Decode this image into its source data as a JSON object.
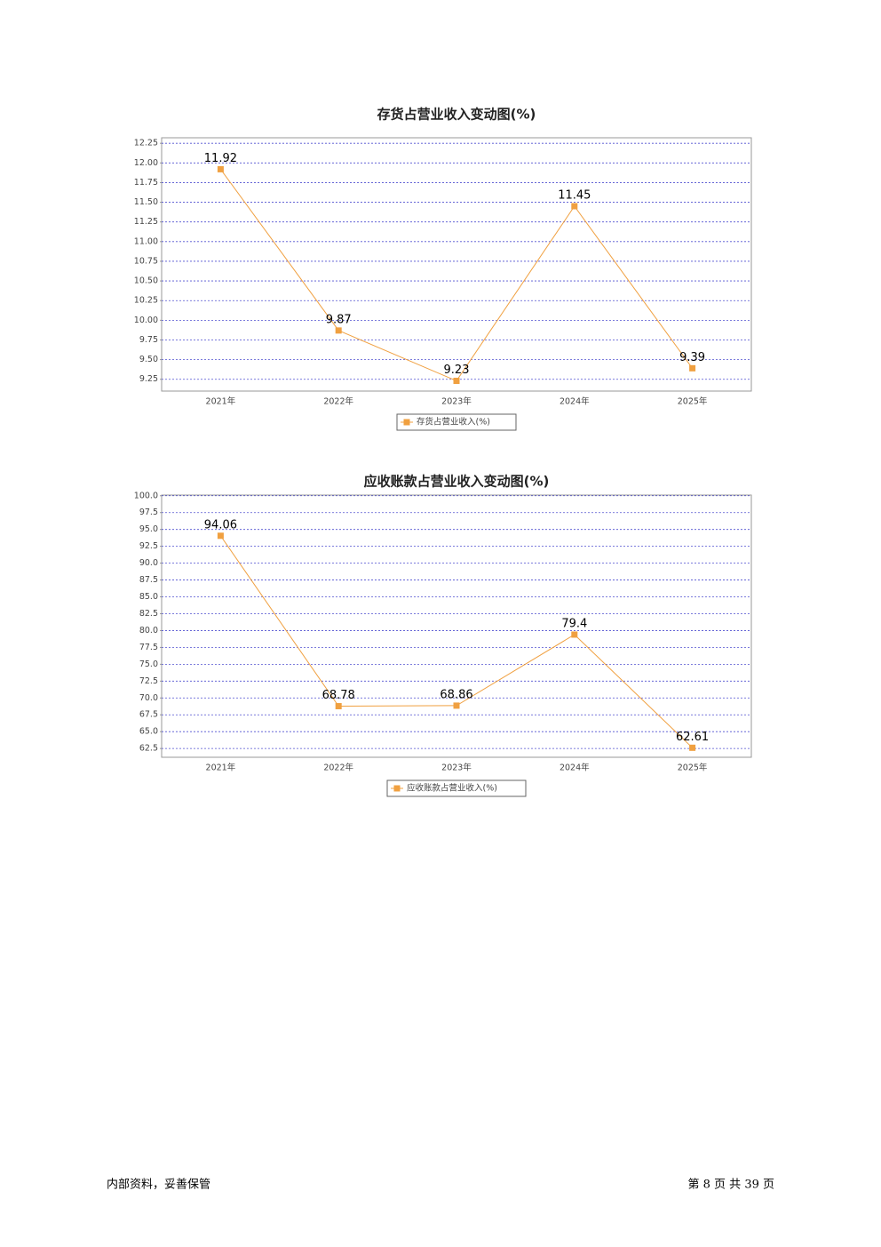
{
  "chart_data": [
    {
      "type": "line",
      "title": "存货占营业收入变动图(%)",
      "categories": [
        "2021年",
        "2022年",
        "2023年",
        "2024年",
        "2025年"
      ],
      "series": [
        {
          "name": "存货占营业收入(%)",
          "color": "#f0a040",
          "values": [
            11.92,
            9.87,
            9.23,
            11.45,
            9.39
          ]
        }
      ],
      "ylim": [
        9.1,
        12.32
      ],
      "yticks": [
        9.25,
        {
          "value": 9.5,
          "label": "9.50"
        },
        9.75,
        {
          "value": 10,
          "label": "10.00"
        },
        10.25,
        {
          "value": 10.5,
          "label": "10.50"
        },
        10.75,
        {
          "value": 11,
          "label": "11.00"
        },
        11.25,
        {
          "value": 11.5,
          "label": "11.50"
        },
        11.75,
        {
          "value": 12,
          "label": "12.00"
        },
        12.25
      ],
      "grid": true,
      "legend": "bottom"
    },
    {
      "type": "line",
      "title": "应收账款占营业收入变动图(%)",
      "categories": [
        "2021年",
        "2022年",
        "2023年",
        "2024年",
        "2025年"
      ],
      "series": [
        {
          "name": "应收账款占营业收入(%)",
          "color": "#f0a040",
          "values": [
            94.06,
            68.78,
            68.86,
            79.4,
            62.61
          ]
        }
      ],
      "ylim": [
        61.2,
        100.1
      ],
      "yticks": [
        62.5,
        {
          "value": 65,
          "label": "65.0"
        },
        67.5,
        {
          "value": 70,
          "label": "70.0"
        },
        72.5,
        {
          "value": 75,
          "label": "75.0"
        },
        77.5,
        {
          "value": 80,
          "label": "80.0"
        },
        82.5,
        {
          "value": 85,
          "label": "85.0"
        },
        87.5,
        {
          "value": 90,
          "label": "90.0"
        },
        92.5,
        {
          "value": 95,
          "label": "95.0"
        },
        97.5,
        {
          "value": 100,
          "label": "100.0"
        }
      ],
      "grid": true,
      "legend": "bottom"
    }
  ],
  "footer": {
    "left": "内部资料，妥善保管",
    "right": "第 8 页  共 39 页"
  }
}
